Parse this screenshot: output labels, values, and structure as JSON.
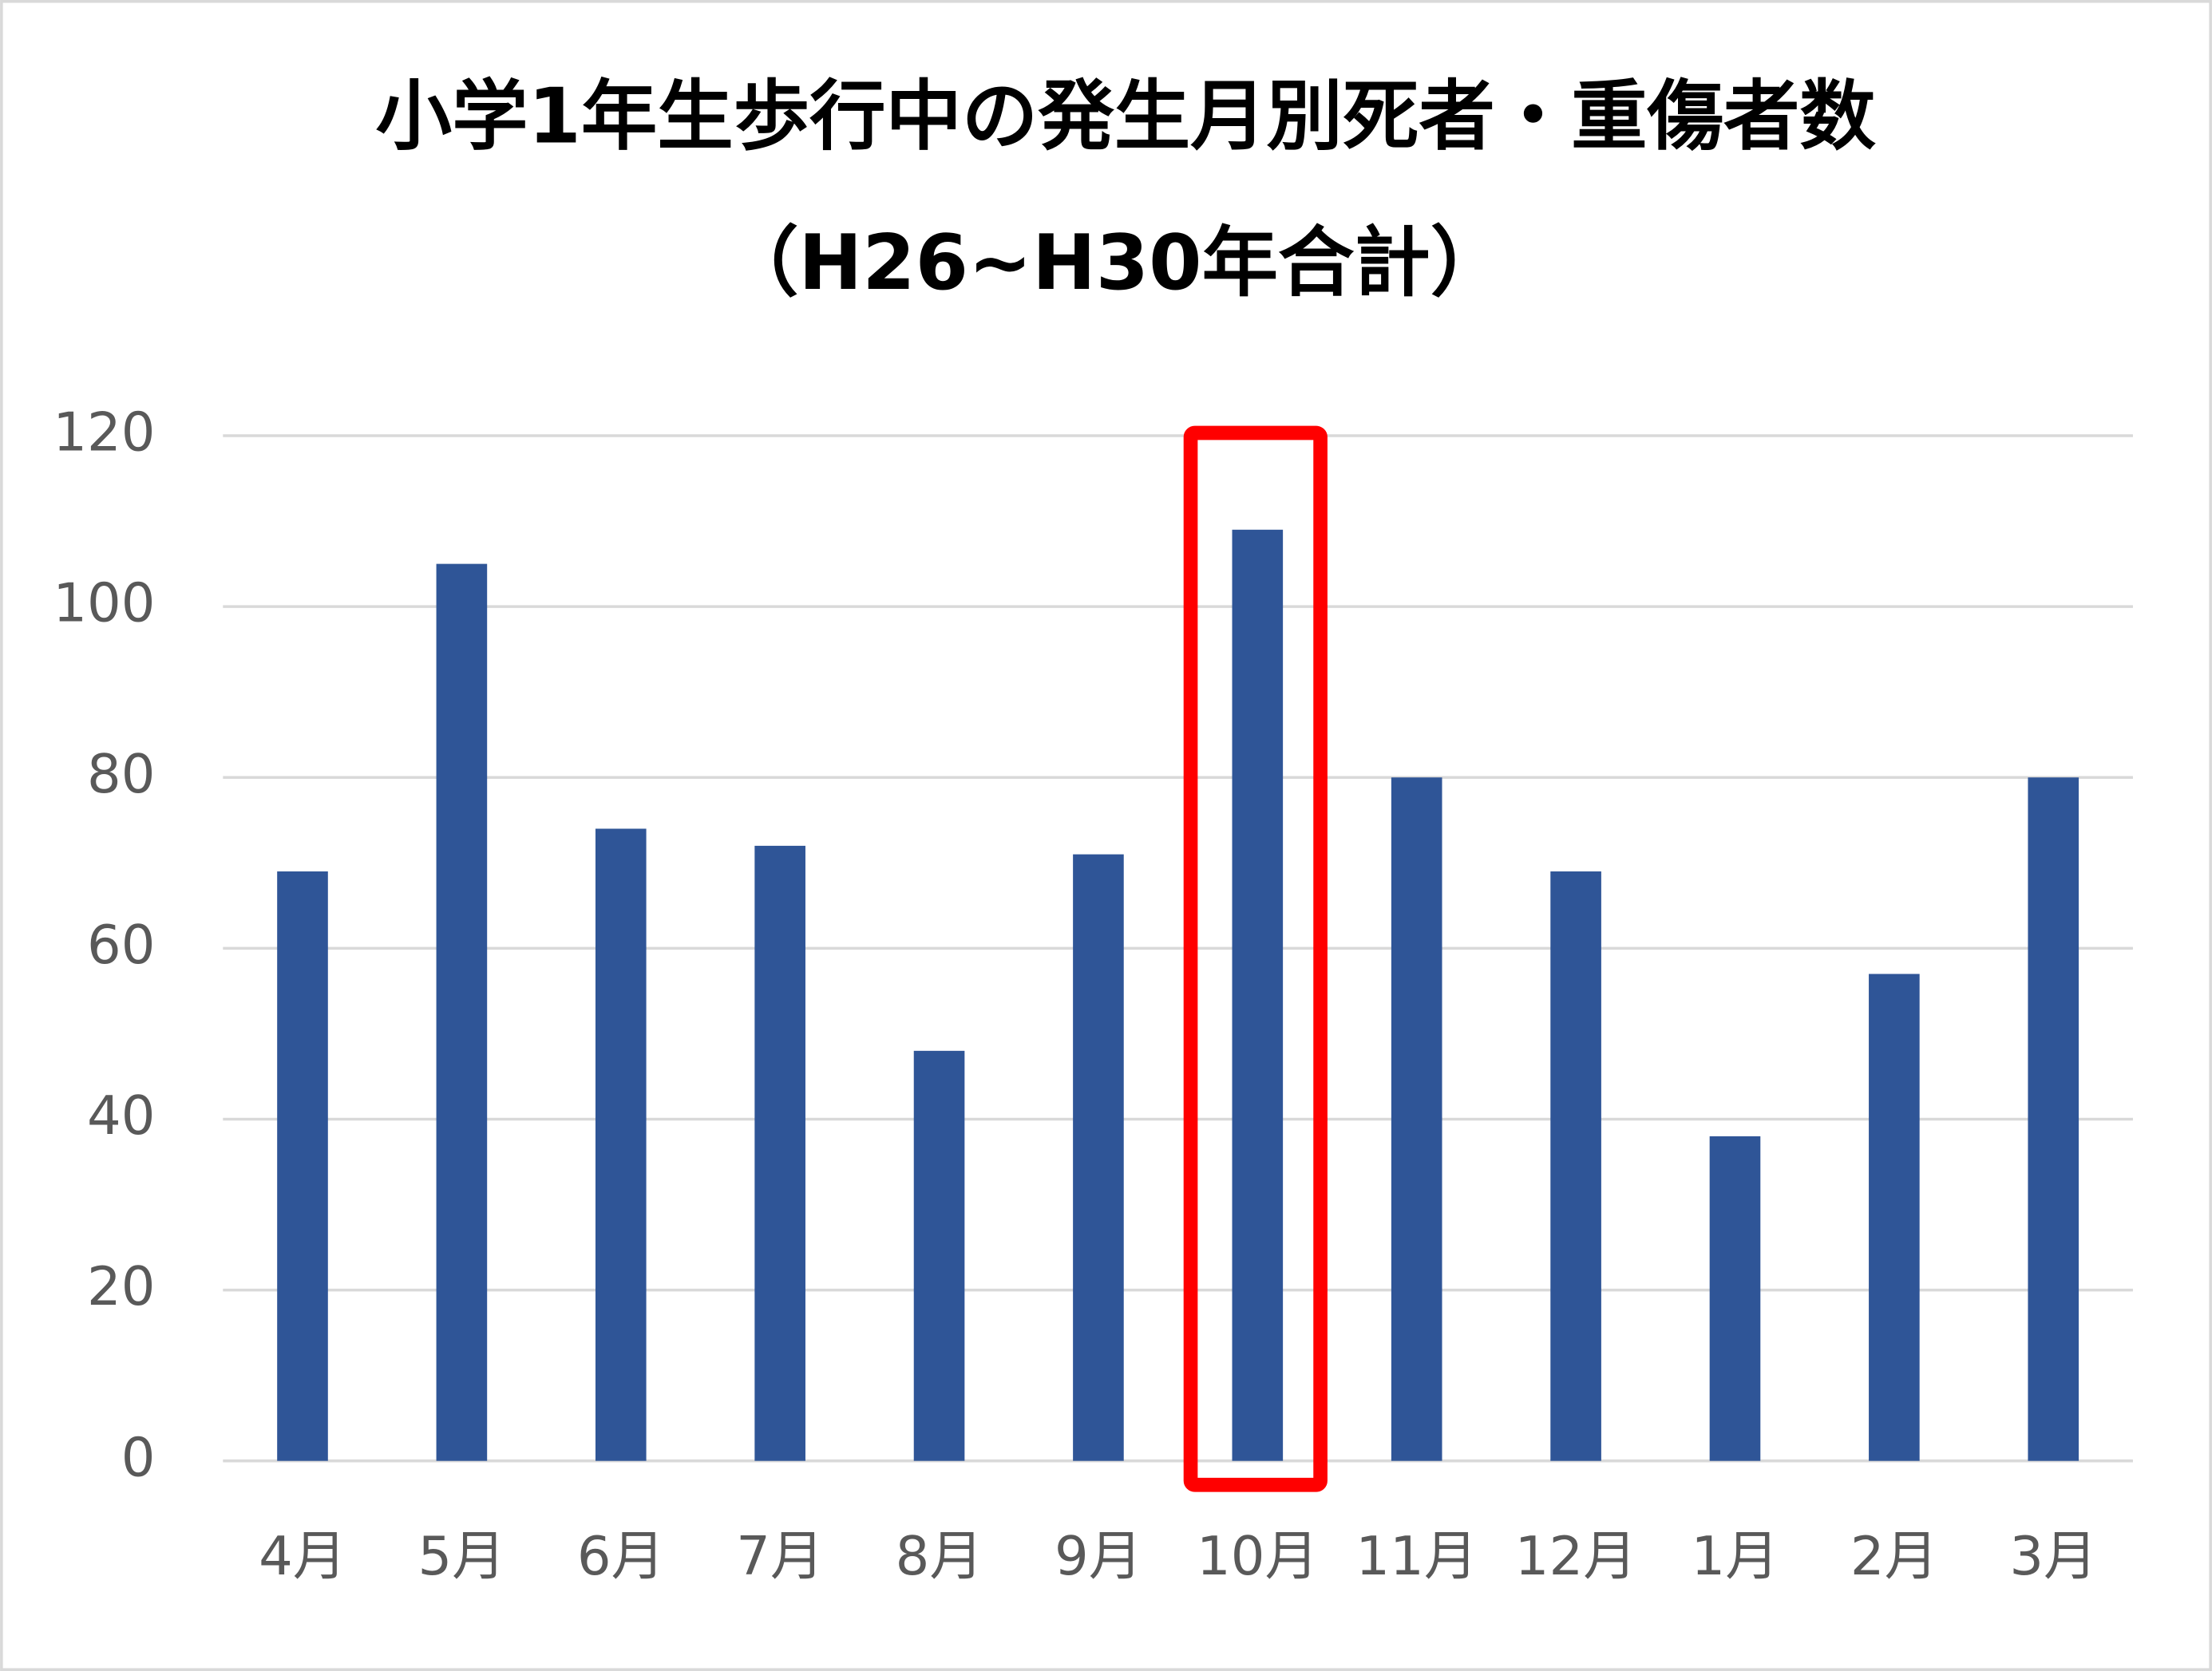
{
  "chart_data": {
    "type": "bar",
    "title": "小学1年生歩行中の発生月別死者・重傷者数",
    "subtitle": "（H26~H30年合計）",
    "categories": [
      "4月",
      "5月",
      "6月",
      "7月",
      "8月",
      "9月",
      "10月",
      "11月",
      "12月",
      "1月",
      "2月",
      "3月"
    ],
    "values": [
      69,
      105,
      74,
      72,
      48,
      71,
      109,
      80,
      69,
      38,
      57,
      80
    ],
    "color": "#2f5597",
    "ylim": [
      0,
      120
    ],
    "yticks": [
      0,
      20,
      40,
      60,
      80,
      100,
      120
    ],
    "grid": true
  }
}
